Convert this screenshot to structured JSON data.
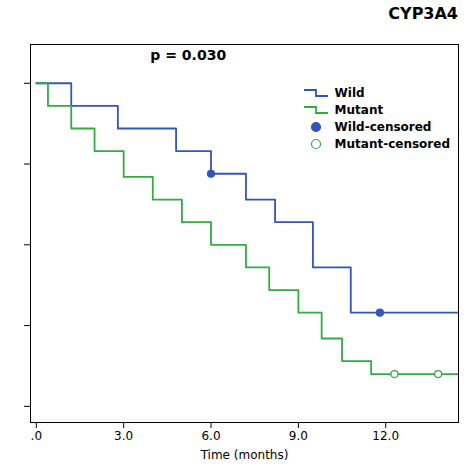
{
  "chart_data": {
    "type": "line",
    "title": "CYP3A4",
    "annotations": [
      "p = 0.030"
    ],
    "xlabel": "Time (months)",
    "xlim": [
      -0.2,
      14.5
    ],
    "ylim": [
      -0.05,
      1.12
    ],
    "xticks": [
      {
        "value": 0.0,
        "label": ".0"
      },
      {
        "value": 3.0,
        "label": "3.0"
      },
      {
        "value": 6.0,
        "label": "6.0"
      },
      {
        "value": 9.0,
        "label": "9.0"
      },
      {
        "value": 12.0,
        "label": "12.0"
      }
    ],
    "yticks": [
      0.0,
      0.25,
      0.5,
      0.75,
      1.0
    ],
    "tick_labels": "x",
    "grid": false,
    "legend": "upper right",
    "series": [
      {
        "name": "Wild",
        "type": "step",
        "color": "#3355bb",
        "x": [
          0,
          1.2,
          1.2,
          2.8,
          2.8,
          4.8,
          4.8,
          6.0,
          6.0,
          7.2,
          7.2,
          8.2,
          8.2,
          9.5,
          9.5,
          10.8,
          10.8,
          11.8,
          11.8,
          14.5
        ],
        "values": [
          1.0,
          1.0,
          0.93,
          0.93,
          0.86,
          0.86,
          0.79,
          0.79,
          0.72,
          0.72,
          0.64,
          0.64,
          0.57,
          0.57,
          0.43,
          0.43,
          0.29,
          0.29,
          0.29,
          0.29
        ]
      },
      {
        "name": "Mutant",
        "type": "step",
        "color": "#33aa44",
        "x": [
          0,
          0.4,
          0.4,
          1.2,
          1.2,
          2.0,
          2.0,
          3.0,
          3.0,
          4.0,
          4.0,
          5.0,
          5.0,
          6.0,
          6.0,
          7.2,
          7.2,
          8.0,
          8.0,
          9.0,
          9.0,
          9.8,
          9.8,
          10.5,
          10.5,
          11.5,
          11.5,
          12.3,
          12.3,
          14.5
        ],
        "values": [
          1.0,
          1.0,
          0.93,
          0.93,
          0.86,
          0.86,
          0.79,
          0.79,
          0.71,
          0.71,
          0.64,
          0.64,
          0.57,
          0.57,
          0.5,
          0.5,
          0.43,
          0.43,
          0.36,
          0.36,
          0.29,
          0.29,
          0.21,
          0.21,
          0.14,
          0.14,
          0.1,
          0.1,
          0.1,
          0.1
        ]
      },
      {
        "name": "Wild-censored",
        "type": "scatter",
        "marker": "circle",
        "color": "#3355bb",
        "x": [
          6.0,
          11.8
        ],
        "values": [
          0.72,
          0.29
        ]
      },
      {
        "name": "Mutant-censored",
        "type": "scatter",
        "marker": "open_circle",
        "color": "#33aa44",
        "x": [
          12.3,
          13.8
        ],
        "values": [
          0.1,
          0.1
        ]
      }
    ]
  }
}
